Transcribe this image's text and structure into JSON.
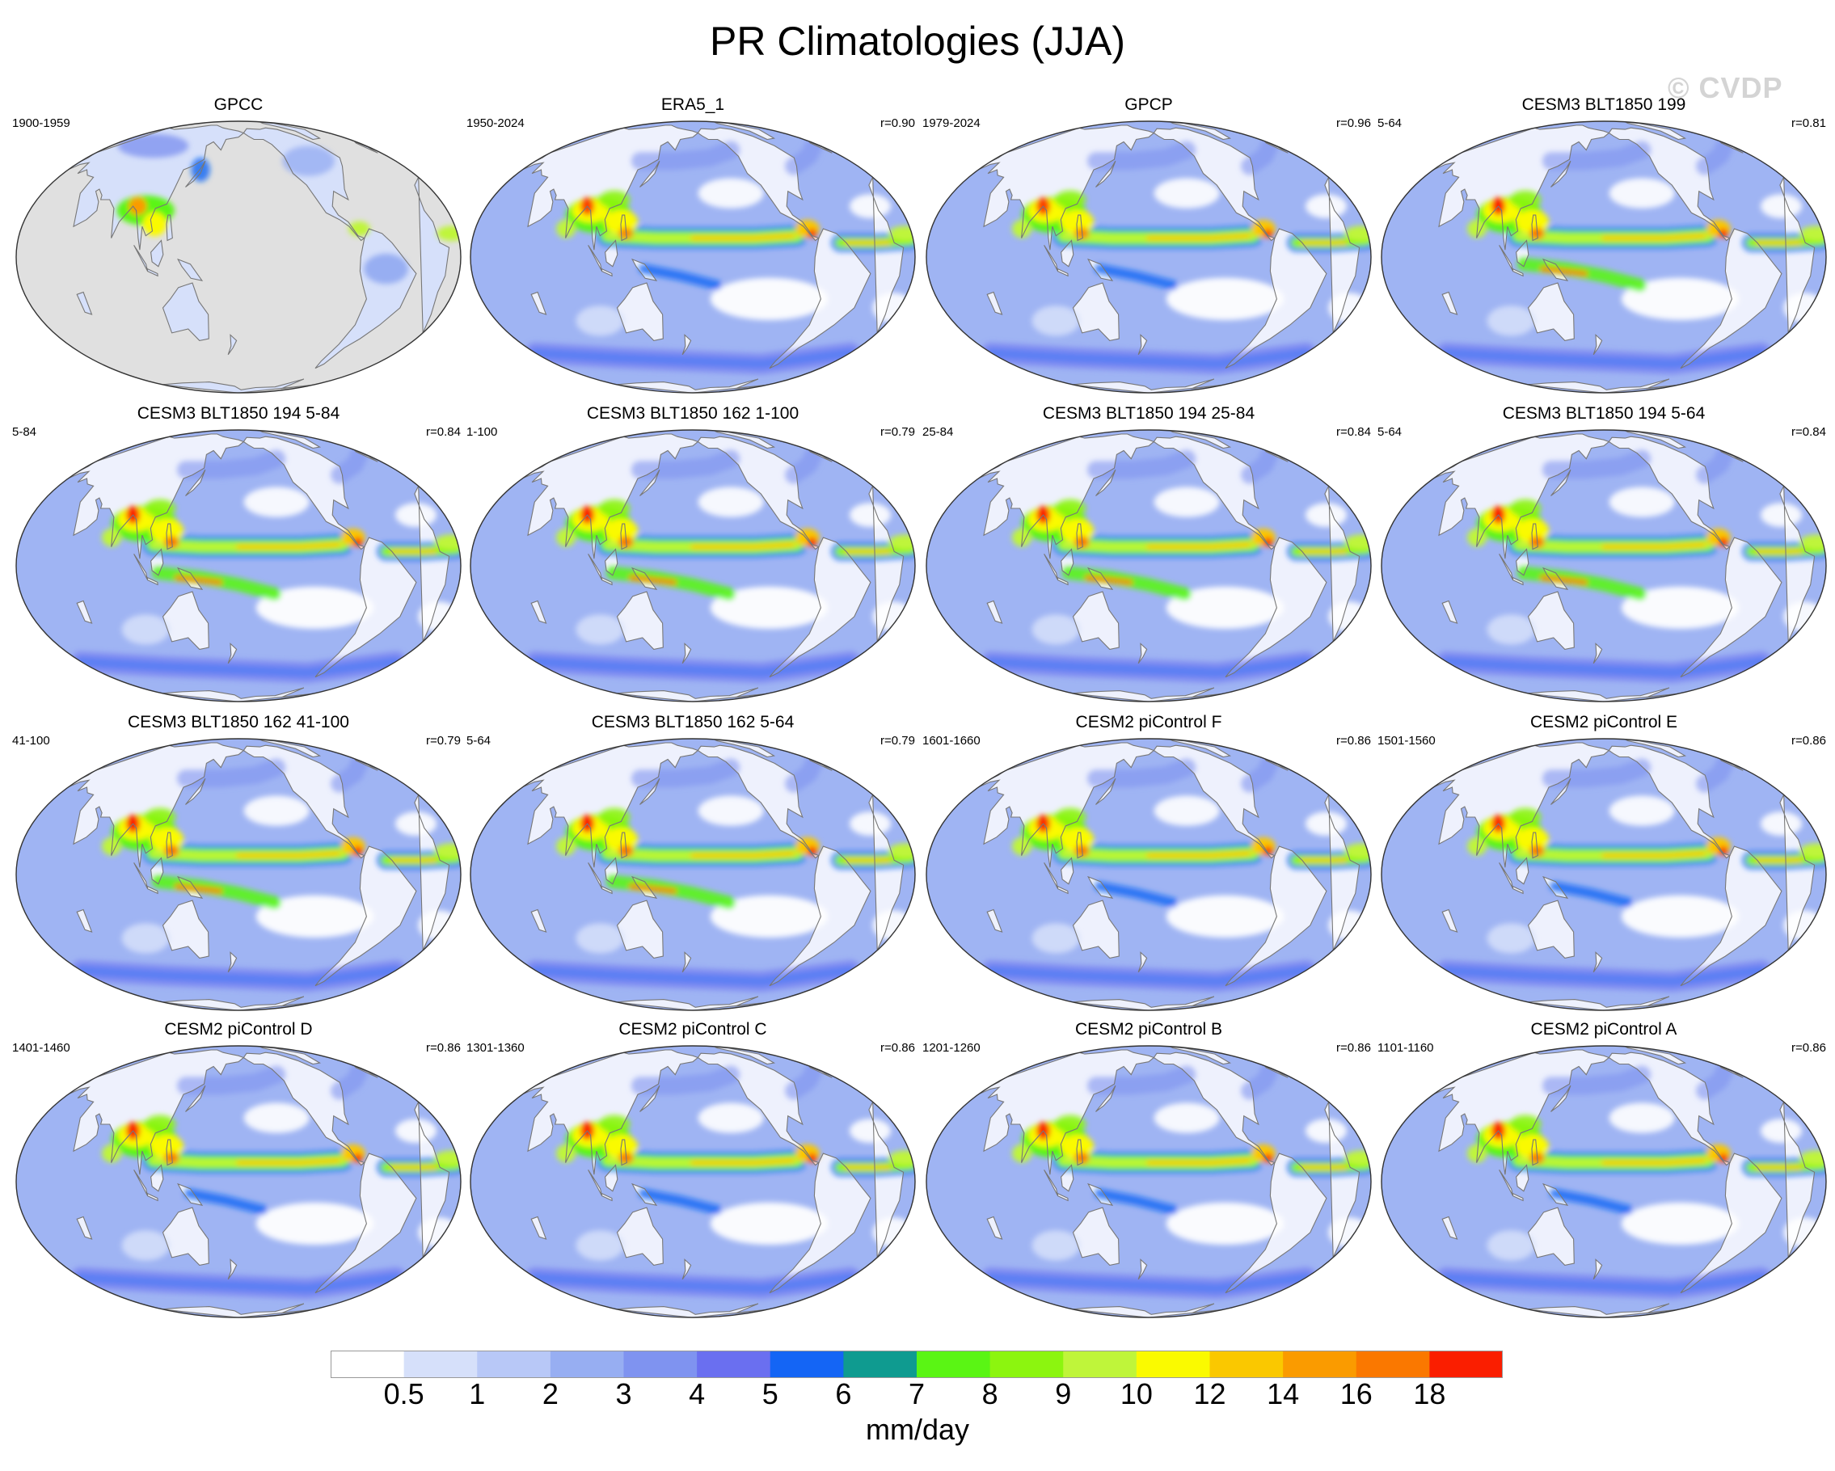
{
  "figure": {
    "title": "PR Climatologies (JJA)",
    "watermark": "© CVDP"
  },
  "panels": [
    {
      "title": "GPCC",
      "period": "1900-1959",
      "corr": "",
      "style": "obs"
    },
    {
      "title": "ERA5_1",
      "period": "1950-2024",
      "corr": "r=0.90",
      "style": "era"
    },
    {
      "title": "GPCP",
      "period": "1979-2024",
      "corr": "r=0.96",
      "style": "gpcp"
    },
    {
      "title": "CESM3 BLT1850 199",
      "period": "5-64",
      "corr": "r=0.81",
      "style": "cesm3"
    },
    {
      "title": "CESM3 BLT1850 194 5-84",
      "period": "5-84",
      "corr": "r=0.84",
      "style": "cesm3"
    },
    {
      "title": "CESM3 BLT1850 162 1-100",
      "period": "1-100",
      "corr": "r=0.79",
      "style": "cesm3"
    },
    {
      "title": "CESM3 BLT1850 194 25-84",
      "period": "25-84",
      "corr": "r=0.84",
      "style": "cesm3"
    },
    {
      "title": "CESM3 BLT1850 194 5-64",
      "period": "5-64",
      "corr": "r=0.84",
      "style": "cesm3"
    },
    {
      "title": "CESM3 BLT1850 162 41-100",
      "period": "41-100",
      "corr": "r=0.79",
      "style": "cesm3"
    },
    {
      "title": "CESM3 BLT1850 162 5-64",
      "period": "5-64",
      "corr": "r=0.79",
      "style": "cesm3"
    },
    {
      "title": "CESM2 piControl F",
      "period": "1601-1660",
      "corr": "r=0.86",
      "style": "cesm2"
    },
    {
      "title": "CESM2 piControl E",
      "period": "1501-1560",
      "corr": "r=0.86",
      "style": "cesm2"
    },
    {
      "title": "CESM2 piControl D",
      "period": "1401-1460",
      "corr": "r=0.86",
      "style": "cesm2"
    },
    {
      "title": "CESM2 piControl C",
      "period": "1301-1360",
      "corr": "r=0.86",
      "style": "cesm2"
    },
    {
      "title": "CESM2 piControl B",
      "period": "1201-1260",
      "corr": "r=0.86",
      "style": "cesm2"
    },
    {
      "title": "CESM2 piControl A",
      "period": "1101-1160",
      "corr": "r=0.86",
      "style": "cesm2"
    }
  ],
  "colorbar": {
    "units": "mm/day",
    "levels": [
      "0.5",
      "1",
      "2",
      "3",
      "4",
      "5",
      "6",
      "7",
      "8",
      "9",
      "10",
      "12",
      "14",
      "16",
      "18"
    ],
    "colors": [
      "#ffffff",
      "#d6e0fa",
      "#b8c8f7",
      "#97aef2",
      "#7f93f0",
      "#6a6ff0",
      "#1465f5",
      "#0f9b90",
      "#5af514",
      "#8cf50f",
      "#bff53a",
      "#fafa00",
      "#fac800",
      "#fa9b00",
      "#fa7800",
      "#fa1e00"
    ]
  },
  "map_style": {
    "ocean_base": "#9fb4f3",
    "land_base": "#eef1fd",
    "missing_fill": "#e0e0e0",
    "coast_color": "#777777"
  }
}
